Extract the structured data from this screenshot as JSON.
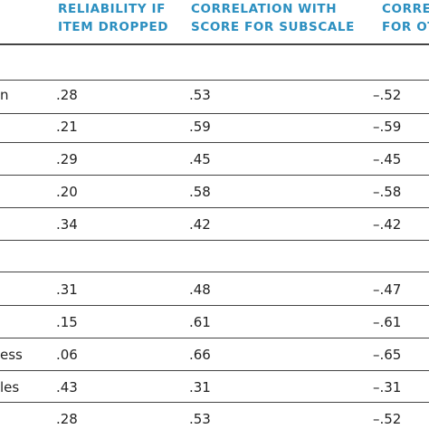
{
  "headers": {
    "reliability": [
      "RELIABILITY IF",
      "ITEM DROPPED"
    ],
    "correlation_subscale": [
      "CORRELATION WITH",
      "SCORE FOR SUBSCALE"
    ],
    "correlation_other": [
      "CORRE",
      "FOR OT"
    ]
  },
  "group1_rows": [
    {
      "label": "n",
      "reliability": ".28",
      "corr_subscale": ".53",
      "corr_other": "–.52"
    },
    {
      "label": "",
      "reliability": ".21",
      "corr_subscale": ".59",
      "corr_other": "–.59"
    },
    {
      "label": "",
      "reliability": ".29",
      "corr_subscale": ".45",
      "corr_other": "–.45"
    },
    {
      "label": "",
      "reliability": ".20",
      "corr_subscale": ".58",
      "corr_other": "–.58"
    },
    {
      "label": "",
      "reliability": ".34",
      "corr_subscale": ".42",
      "corr_other": "–.42"
    }
  ],
  "group2_rows": [
    {
      "label": "",
      "reliability": ".31",
      "corr_subscale": ".48",
      "corr_other": "–.47"
    },
    {
      "label": "",
      "reliability": ".15",
      "corr_subscale": ".61",
      "corr_other": "–.61"
    },
    {
      "label": "ess",
      "reliability": ".06",
      "corr_subscale": ".66",
      "corr_other": "–.65"
    },
    {
      "label": "les",
      "reliability": ".43",
      "corr_subscale": ".31",
      "corr_other": "–.31"
    },
    {
      "label": "",
      "reliability": ".28",
      "corr_subscale": ".53",
      "corr_other": "–.52"
    }
  ],
  "colors": {
    "header": "#2b8fc0",
    "rule": "#444444",
    "text": "#222222"
  }
}
